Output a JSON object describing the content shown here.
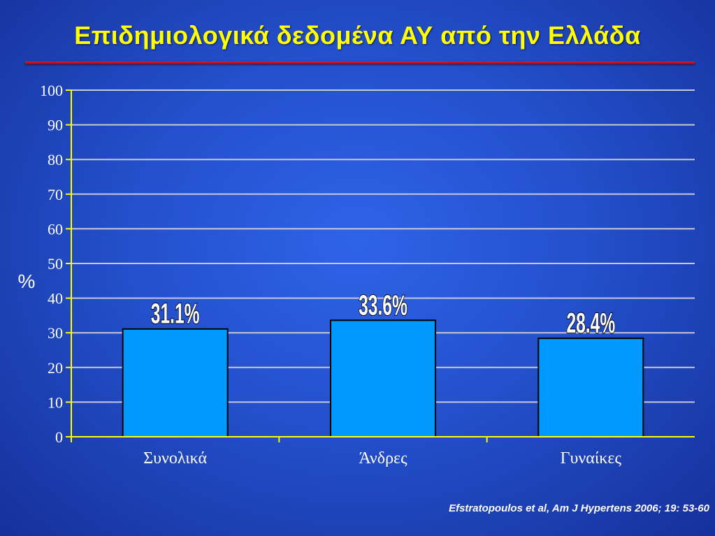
{
  "slide": {
    "title": "Επιδημιολογικά δεδομένα ΑΥ από την Ελλάδα",
    "citation": "Efstratopoulos et al, Am J Hypertens 2006; 19: 53-60"
  },
  "colors": {
    "title": "#ffff00",
    "bar_fill": "#0099ff",
    "bar_stroke": "#000000",
    "axis": "#ffff00",
    "grid": "#c8c8d8",
    "tick_text": "#ffffff"
  },
  "chart_data": {
    "type": "bar",
    "categories": [
      "Συνολικά",
      "Άνδρες",
      "Γυναίκες"
    ],
    "values": [
      31.1,
      33.6,
      28.4
    ],
    "value_labels": [
      "31.1%",
      "33.6%",
      "28.4%"
    ],
    "ylabel": "%",
    "xlabel": "",
    "ylim": [
      0,
      100
    ],
    "yticks": [
      "0",
      "10",
      "20",
      "30",
      "40",
      "50",
      "60",
      "70",
      "80",
      "90",
      "100"
    ],
    "grid": true
  }
}
